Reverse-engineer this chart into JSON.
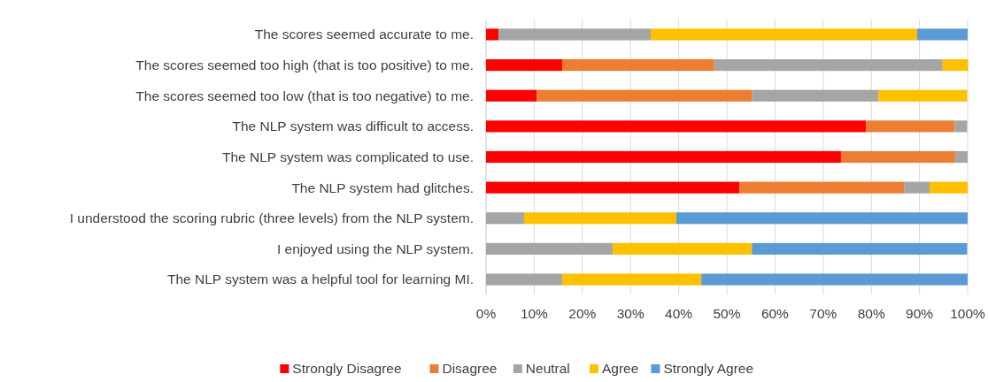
{
  "chart_data": {
    "type": "bar",
    "orientation": "horizontal",
    "stacked": true,
    "categories": [
      "The scores seemed accurate to me.",
      "The scores seemed too high (that is too positive) to me.",
      "The scores seemed too low (that is too negative) to me.",
      "The NLP system was difficult to access.",
      "The NLP system was complicated to use.",
      "The NLP system had glitches.",
      "I understood the scoring rubric (three levels) from the NLP system.",
      "I enjoyed using the NLP system.",
      "The NLP system was a helpful tool for learning MI."
    ],
    "series": [
      {
        "name": "Strongly Disagree",
        "color": "#ff0000",
        "values": [
          2.6,
          15.8,
          10.5,
          78.9,
          73.7,
          52.6,
          0,
          0,
          0
        ]
      },
      {
        "name": "Disagree",
        "color": "#ed7d31",
        "values": [
          0,
          31.6,
          44.7,
          18.4,
          23.7,
          34.2,
          0,
          0,
          0
        ]
      },
      {
        "name": "Neutral",
        "color": "#a5a5a5",
        "values": [
          31.6,
          47.4,
          26.3,
          2.6,
          2.6,
          5.3,
          7.9,
          26.3,
          15.8
        ]
      },
      {
        "name": "Agree",
        "color": "#ffc000",
        "values": [
          55.3,
          5.3,
          18.4,
          0,
          0,
          7.9,
          31.6,
          28.9,
          28.9
        ]
      },
      {
        "name": "Strongly Agree",
        "color": "#5b9bd5",
        "values": [
          10.5,
          0,
          0,
          0,
          0,
          0,
          60.5,
          44.7,
          55.3
        ]
      }
    ],
    "xlim": [
      0,
      100
    ],
    "xticks": [
      {
        "value": 0,
        "label": "0%"
      },
      {
        "value": 10,
        "label": "10%"
      },
      {
        "value": 20,
        "label": "20%"
      },
      {
        "value": 30,
        "label": "30%"
      },
      {
        "value": 40,
        "label": "40%"
      },
      {
        "value": 50,
        "label": "50%"
      },
      {
        "value": 60,
        "label": "60%"
      },
      {
        "value": 70,
        "label": "70%"
      },
      {
        "value": 80,
        "label": "80%"
      },
      {
        "value": 90,
        "label": "90%"
      },
      {
        "value": 100,
        "label": "100%"
      }
    ],
    "grid": "x",
    "legend": "bottom"
  }
}
